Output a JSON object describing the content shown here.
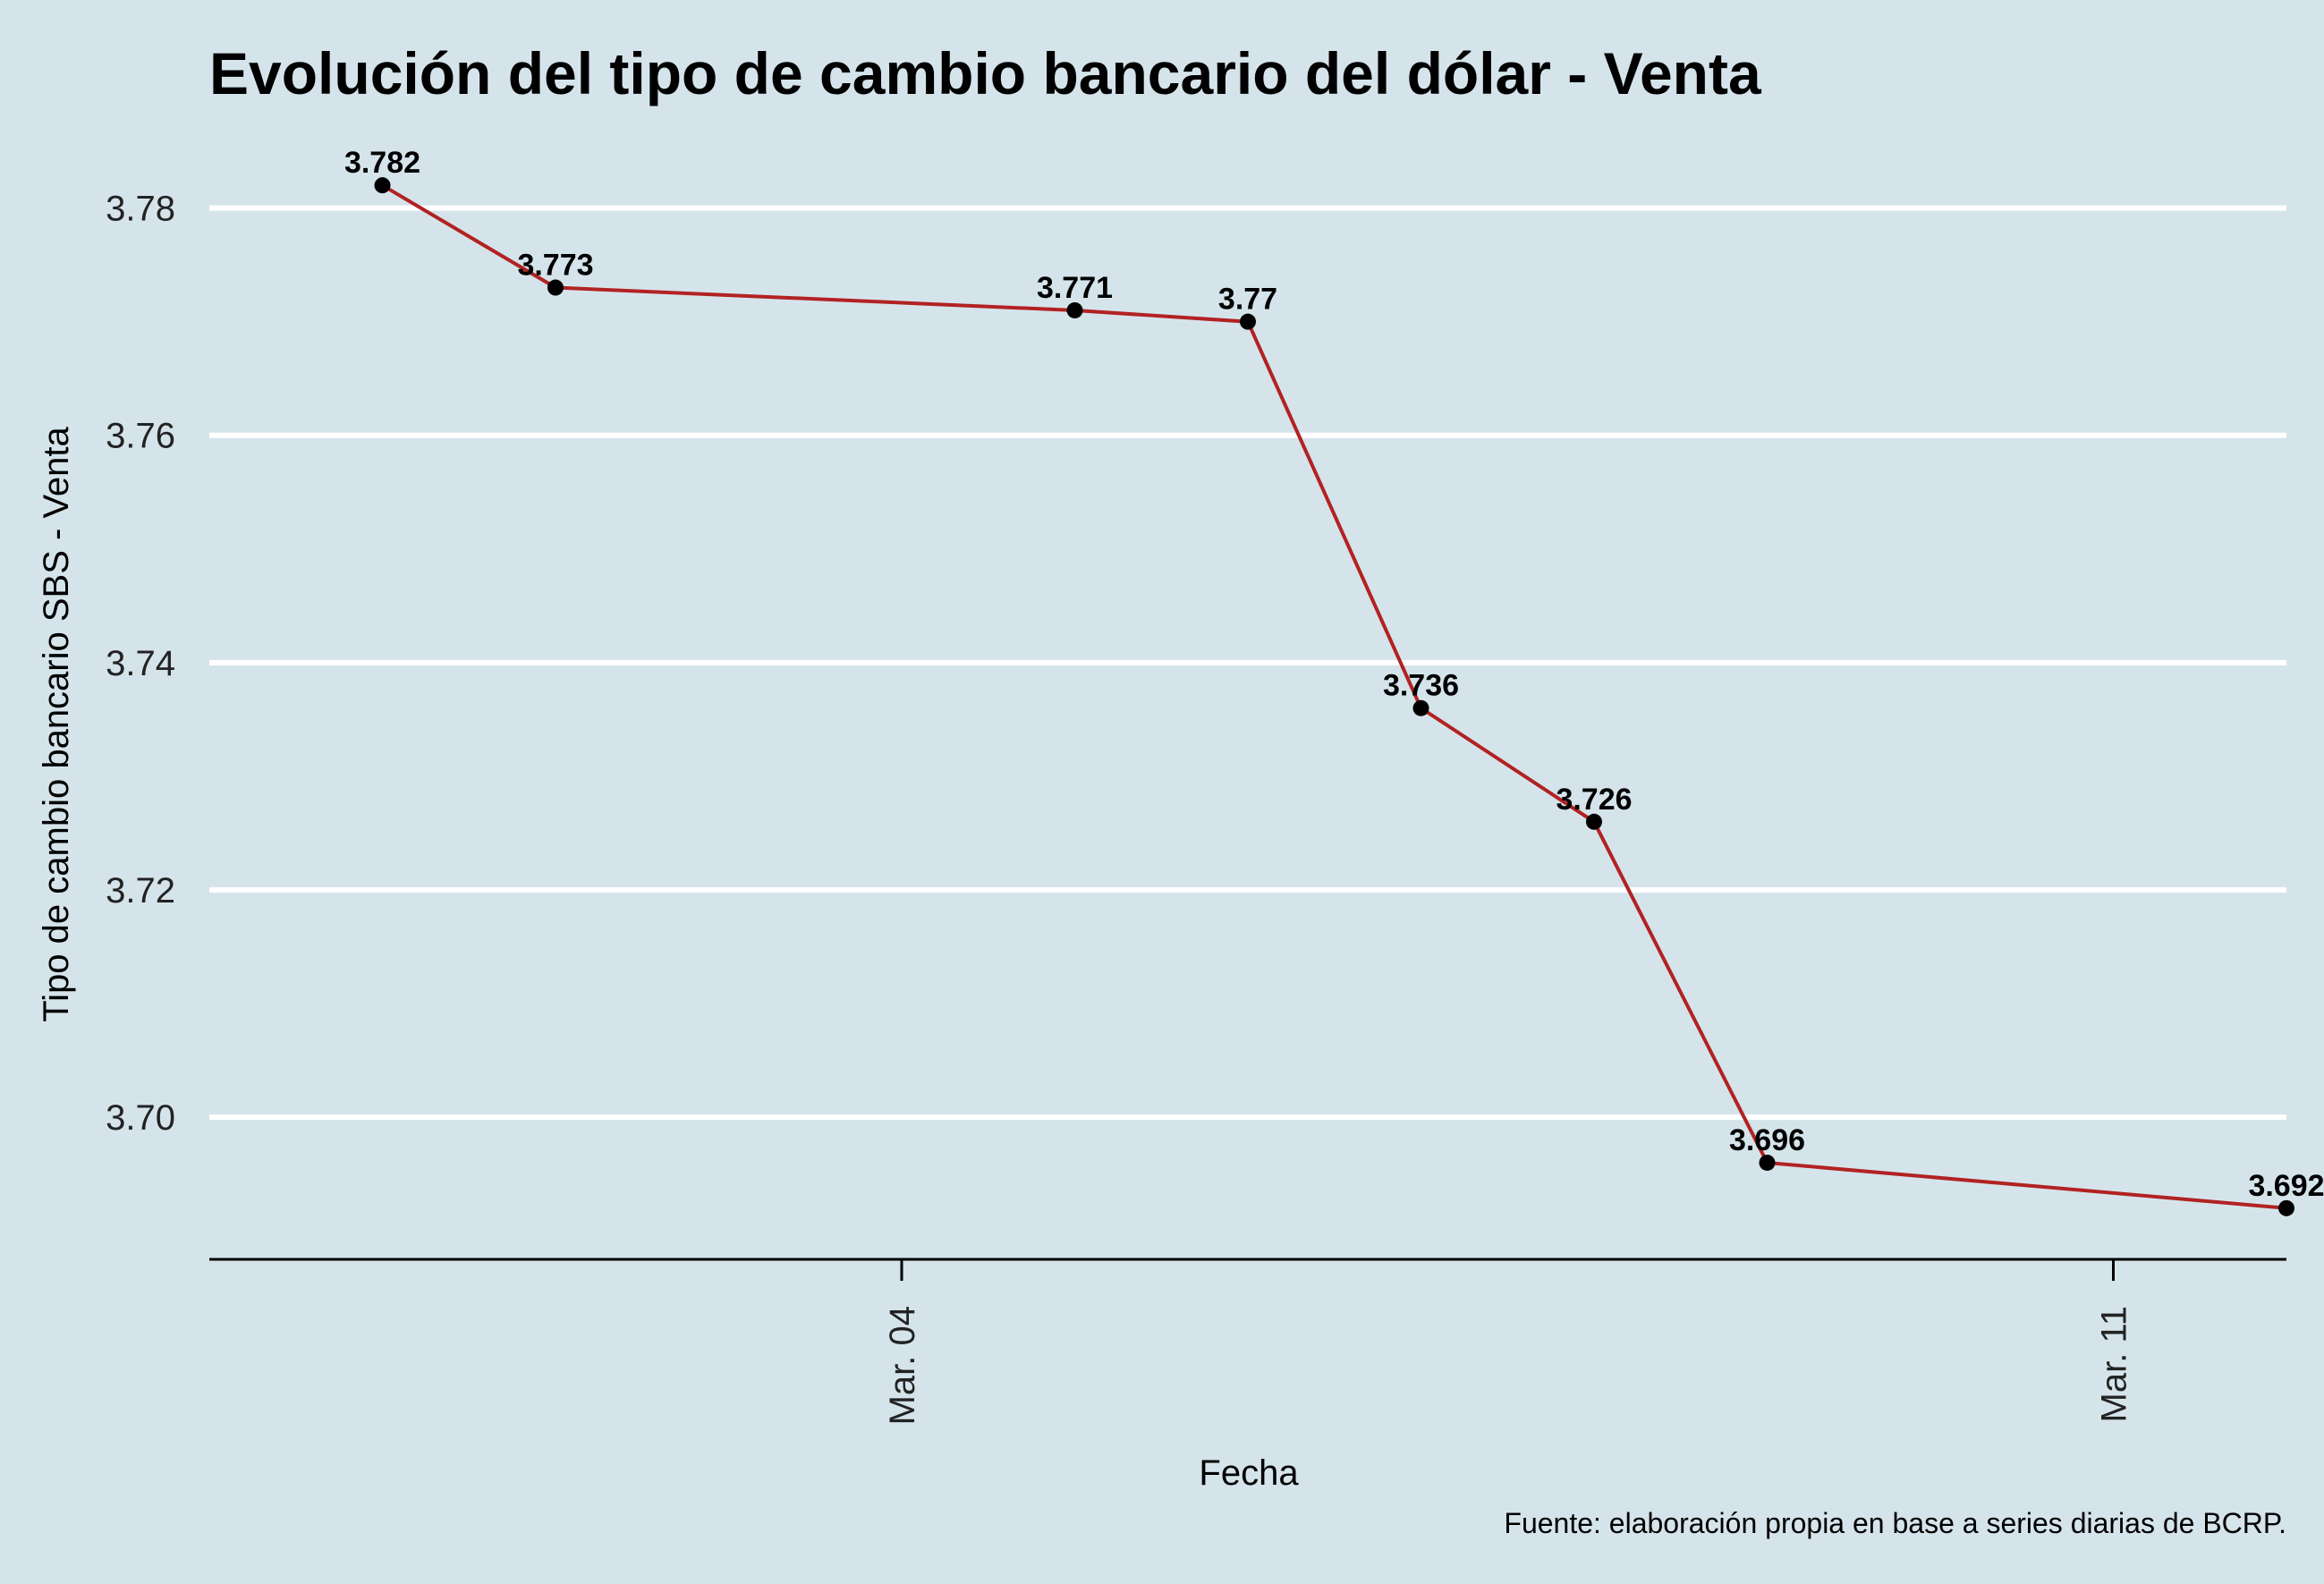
{
  "chart_data": {
    "type": "line",
    "title": "Evolución del tipo de cambio bancario del dólar - Venta",
    "xlabel": "Fecha",
    "ylabel": "Tipo de cambio bancario SBS - Venta",
    "caption": "Fuente: elaboración propia en base a series diarias de BCRP.",
    "x": [
      "2024-03-01",
      "2024-03-02",
      "2024-03-05",
      "2024-03-06",
      "2024-03-07",
      "2024-03-08",
      "2024-03-09",
      "2024-03-12"
    ],
    "series": [
      {
        "values": [
          3.782,
          3.773,
          3.771,
          3.77,
          3.736,
          3.726,
          3.696,
          3.692
        ]
      }
    ],
    "data_labels": [
      "3.782",
      "3.773",
      "3.771",
      "3.77",
      "3.736",
      "3.726",
      "3.696",
      "3.692"
    ],
    "x_ticks": [
      {
        "date": "2024-03-04",
        "label": "Mar. 04"
      },
      {
        "date": "2024-03-11",
        "label": "Mar. 11"
      }
    ],
    "y_ticks": [
      3.7,
      3.72,
      3.74,
      3.76,
      3.78
    ],
    "y_tick_labels": [
      "3.70",
      "3.72",
      "3.74",
      "3.76",
      "3.78"
    ],
    "ylim": [
      3.6875,
      3.7865
    ],
    "xlim": [
      "2024-02-29",
      "2024-03-12"
    ],
    "grid": "horizontal-major",
    "colors": {
      "background": "#d5e4eb",
      "line": "#b22222",
      "point": "#000000",
      "grid": "#ffffff",
      "axis": "#000000"
    }
  }
}
